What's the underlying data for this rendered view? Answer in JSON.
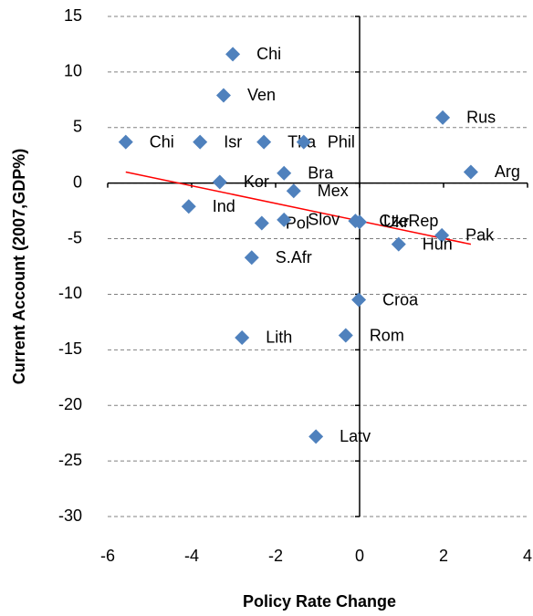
{
  "chart_data": {
    "type": "scatter",
    "xlabel": "Policy Rate Change",
    "ylabel": "Current Account (2007,GDP%)",
    "xlim": [
      -6,
      4
    ],
    "xticks": [
      -6,
      -4,
      -2,
      0,
      2,
      4
    ],
    "ylim": [
      -30,
      15
    ],
    "yticks": [
      -30,
      -25,
      -20,
      -15,
      -10,
      -5,
      0,
      5,
      10,
      15
    ],
    "grid": true,
    "color": "#4f81bd",
    "labels": [
      "Chi",
      "Ven",
      "Rus",
      "Chi",
      "Isr",
      "Tha",
      "Phil",
      "Arg",
      "Bra",
      "Kor",
      "Mex",
      "Ind",
      "Pol",
      "Slov",
      "CzeRep",
      "Ukr",
      "Pak",
      "Hun",
      "S.Afr",
      "Croa",
      "Lith",
      "Rom",
      "Latv"
    ],
    "x": [
      -3.02,
      -3.24,
      1.98,
      -5.57,
      -3.8,
      -2.28,
      -1.33,
      2.65,
      -1.8,
      -3.33,
      -1.57,
      -4.07,
      -2.33,
      -1.8,
      -0.1,
      0,
      1.96,
      0.93,
      -2.57,
      -0.02,
      -2.8,
      -0.33,
      -1.04
    ],
    "values": [
      11.6,
      7.9,
      5.9,
      3.7,
      3.7,
      3.7,
      3.7,
      1.0,
      0.9,
      0.1,
      -0.7,
      -2.1,
      -3.6,
      -3.3,
      -3.4,
      -3.5,
      -4.7,
      -5.5,
      -6.7,
      -10.5,
      -13.9,
      -13.7,
      -22.8
    ],
    "trendline": {
      "color": "#ff0000",
      "x": [
        -5.57,
        2.65
      ],
      "values": [
        1.0,
        -5.5
      ]
    }
  }
}
